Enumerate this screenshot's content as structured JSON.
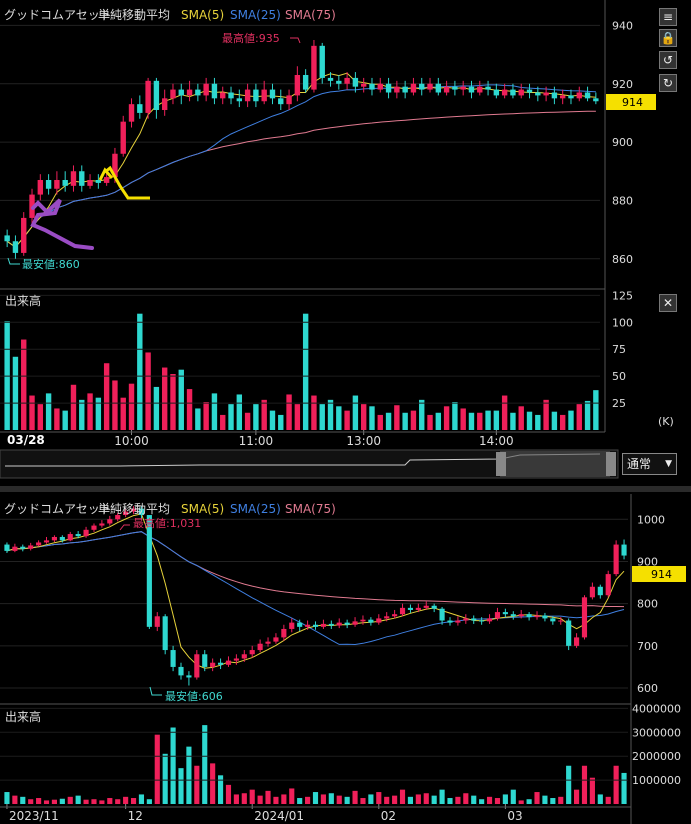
{
  "chart_data": [
    {
      "type": "candlestick",
      "title": "グッドコムアセット",
      "indicator_label": "単純移動平均",
      "ma_labels": [
        {
          "name": "SMA(5)",
          "color": "#e6d23a"
        },
        {
          "name": "SMA(25)",
          "color": "#3f7fe0"
        },
        {
          "name": "SMA(75)",
          "color": "#e07a90"
        }
      ],
      "date_label": "03/28",
      "x_ticks": [
        "10:00",
        "11:00",
        "13:00",
        "14:00"
      ],
      "y_ticks": [
        860,
        880,
        900,
        920,
        940
      ],
      "ylim": [
        851,
        947
      ],
      "current_price": "914",
      "high_label": "最高値:935",
      "low_label": "最安値:860",
      "volume_label": "出来高",
      "volume_ticks": [
        25,
        50,
        75,
        100,
        125
      ],
      "volume_unit": "(K)",
      "volume_ylim": [
        0,
        130
      ],
      "mode_label": "通常",
      "candles": [
        [
          868,
          866,
          870,
          864
        ],
        [
          866,
          862,
          868,
          860
        ],
        [
          862,
          874,
          876,
          861
        ],
        [
          874,
          882,
          884,
          872
        ],
        [
          882,
          887,
          889,
          880
        ],
        [
          887,
          884,
          889,
          882
        ],
        [
          884,
          887,
          890,
          882
        ],
        [
          887,
          885,
          890,
          883
        ],
        [
          885,
          890,
          892,
          883
        ],
        [
          890,
          885,
          892,
          883
        ],
        [
          885,
          887,
          889,
          884
        ],
        [
          887,
          886,
          889,
          884
        ],
        [
          886,
          888,
          890,
          885
        ],
        [
          888,
          896,
          898,
          886
        ],
        [
          896,
          907,
          909,
          895
        ],
        [
          907,
          913,
          915,
          905
        ],
        [
          913,
          910,
          916,
          908
        ],
        [
          910,
          921,
          922,
          908
        ],
        [
          921,
          911,
          922,
          908
        ],
        [
          911,
          915,
          918,
          909
        ],
        [
          915,
          918,
          920,
          913
        ],
        [
          918,
          916,
          920,
          913
        ],
        [
          916,
          918,
          921,
          914
        ],
        [
          918,
          916,
          920,
          914
        ],
        [
          916,
          920,
          922,
          914
        ],
        [
          920,
          915,
          922,
          913
        ],
        [
          915,
          917,
          919,
          913
        ],
        [
          917,
          915,
          919,
          913
        ],
        [
          915,
          914,
          918,
          912
        ],
        [
          914,
          918,
          920,
          912
        ],
        [
          918,
          914,
          920,
          912
        ],
        [
          914,
          918,
          921,
          913
        ],
        [
          918,
          915,
          920,
          913
        ],
        [
          915,
          913,
          918,
          911
        ],
        [
          913,
          916,
          918,
          911
        ],
        [
          916,
          923,
          926,
          914
        ],
        [
          923,
          918,
          925,
          917
        ],
        [
          918,
          933,
          935,
          917
        ],
        [
          933,
          922,
          934,
          920
        ],
        [
          922,
          921,
          924,
          919
        ],
        [
          921,
          920,
          923,
          918
        ],
        [
          920,
          922,
          924,
          918
        ],
        [
          922,
          919,
          924,
          917
        ],
        [
          919,
          920,
          922,
          917
        ],
        [
          920,
          918,
          922,
          916
        ],
        [
          918,
          920,
          922,
          917
        ],
        [
          920,
          917,
          922,
          915
        ],
        [
          917,
          919,
          921,
          915
        ],
        [
          919,
          917,
          921,
          915
        ],
        [
          917,
          920,
          922,
          916
        ],
        [
          920,
          918,
          922,
          916
        ],
        [
          918,
          920,
          922,
          917
        ],
        [
          920,
          917,
          922,
          916
        ],
        [
          917,
          919,
          921,
          916
        ],
        [
          919,
          918,
          921,
          916
        ],
        [
          918,
          919,
          921,
          916
        ],
        [
          919,
          917,
          921,
          915
        ],
        [
          917,
          919,
          921,
          916
        ],
        [
          919,
          918,
          921,
          916
        ],
        [
          918,
          916,
          920,
          915
        ],
        [
          916,
          918,
          920,
          915
        ],
        [
          918,
          916,
          920,
          915
        ],
        [
          916,
          918,
          920,
          915
        ],
        [
          918,
          917,
          920,
          915
        ],
        [
          917,
          916,
          919,
          914
        ],
        [
          916,
          917,
          919,
          914
        ],
        [
          917,
          915,
          919,
          913
        ],
        [
          915,
          916,
          918,
          913
        ],
        [
          916,
          915,
          918,
          913
        ],
        [
          915,
          917,
          919,
          914
        ],
        [
          917,
          915,
          919,
          914
        ],
        [
          915,
          914,
          917,
          913
        ]
      ],
      "volume": [
        101,
        68,
        84,
        32,
        24,
        34,
        20,
        18,
        42,
        28,
        34,
        30,
        62,
        46,
        30,
        43,
        108,
        72,
        40,
        58,
        52,
        56,
        38,
        20,
        26,
        34,
        14,
        24,
        33,
        16,
        24,
        28,
        18,
        14,
        33,
        24,
        108,
        32,
        24,
        28,
        22,
        18,
        32,
        24,
        22,
        14,
        16,
        23,
        16,
        18,
        28,
        14,
        16,
        22,
        26,
        20,
        16,
        16,
        18,
        18,
        32,
        16,
        22,
        17,
        14,
        28,
        17,
        14,
        18,
        24,
        27,
        37
      ]
    },
    {
      "type": "candlestick",
      "title": "グッドコムアセット",
      "indicator_label": "単純移動平均",
      "ma_labels": [
        {
          "name": "SMA(5)",
          "color": "#e6d23a"
        },
        {
          "name": "SMA(25)",
          "color": "#3f7fe0"
        },
        {
          "name": "SMA(75)",
          "color": "#e07a90"
        }
      ],
      "x_ticks": [
        "2023/11",
        "12",
        "2024/01",
        "02",
        "03"
      ],
      "y_ticks": [
        600,
        700,
        800,
        900,
        1000
      ],
      "ylim": [
        574,
        1048
      ],
      "current_price": "914",
      "high_label": "最高値:1,031",
      "low_label": "最安値:606",
      "volume_label": "出来高",
      "volume_ticks": [
        1000000,
        2000000,
        3000000,
        4000000
      ],
      "volume_ylim": [
        0,
        4100000
      ],
      "candles": [
        [
          940,
          925,
          945,
          920
        ],
        [
          925,
          935,
          942,
          922
        ],
        [
          935,
          930,
          940,
          924
        ],
        [
          930,
          938,
          944,
          926
        ],
        [
          938,
          945,
          950,
          935
        ],
        [
          945,
          950,
          958,
          942
        ],
        [
          950,
          958,
          962,
          946
        ],
        [
          958,
          950,
          962,
          945
        ],
        [
          950,
          965,
          970,
          948
        ],
        [
          965,
          960,
          972,
          955
        ],
        [
          960,
          975,
          982,
          956
        ],
        [
          975,
          985,
          990,
          970
        ],
        [
          985,
          990,
          998,
          980
        ],
        [
          990,
          1000,
          1008,
          985
        ],
        [
          1000,
          1010,
          1015,
          995
        ],
        [
          1010,
          1018,
          1025,
          1005
        ],
        [
          1018,
          1025,
          1031,
          1012
        ],
        [
          1025,
          1010,
          1030,
          1000
        ],
        [
          1010,
          745,
          1010,
          740
        ],
        [
          745,
          770,
          780,
          735
        ],
        [
          770,
          690,
          775,
          680
        ],
        [
          690,
          650,
          700,
          640
        ],
        [
          650,
          630,
          660,
          620
        ],
        [
          630,
          625,
          640,
          606
        ],
        [
          625,
          680,
          690,
          620
        ],
        [
          680,
          650,
          690,
          640
        ],
        [
          650,
          660,
          670,
          640
        ],
        [
          660,
          655,
          670,
          645
        ],
        [
          655,
          665,
          675,
          650
        ],
        [
          665,
          670,
          680,
          655
        ],
        [
          670,
          680,
          690,
          662
        ],
        [
          680,
          690,
          700,
          672
        ],
        [
          690,
          705,
          715,
          685
        ],
        [
          705,
          710,
          720,
          698
        ],
        [
          710,
          720,
          730,
          705
        ],
        [
          720,
          740,
          750,
          712
        ],
        [
          740,
          755,
          765,
          732
        ],
        [
          755,
          745,
          762,
          735
        ],
        [
          745,
          750,
          760,
          738
        ],
        [
          750,
          745,
          758,
          738
        ],
        [
          745,
          752,
          762,
          740
        ],
        [
          752,
          748,
          760,
          740
        ],
        [
          748,
          755,
          765,
          742
        ],
        [
          755,
          750,
          762,
          742
        ],
        [
          750,
          758,
          768,
          745
        ],
        [
          758,
          762,
          772,
          750
        ],
        [
          762,
          755,
          768,
          748
        ],
        [
          755,
          765,
          775,
          750
        ],
        [
          765,
          770,
          780,
          758
        ],
        [
          770,
          775,
          785,
          765
        ],
        [
          775,
          790,
          800,
          770
        ],
        [
          790,
          785,
          798,
          778
        ],
        [
          785,
          790,
          800,
          780
        ],
        [
          790,
          795,
          805,
          785
        ],
        [
          795,
          788,
          800,
          780
        ],
        [
          788,
          760,
          792,
          750
        ],
        [
          760,
          755,
          768,
          748
        ],
        [
          755,
          760,
          770,
          748
        ],
        [
          760,
          765,
          775,
          752
        ],
        [
          765,
          760,
          772,
          752
        ],
        [
          760,
          758,
          768,
          750
        ],
        [
          758,
          765,
          775,
          752
        ],
        [
          765,
          780,
          790,
          760
        ],
        [
          780,
          775,
          788,
          768
        ],
        [
          775,
          770,
          782,
          762
        ],
        [
          770,
          775,
          785,
          765
        ],
        [
          775,
          768,
          780,
          760
        ],
        [
          768,
          772,
          782,
          762
        ],
        [
          772,
          765,
          778,
          758
        ],
        [
          765,
          758,
          770,
          750
        ],
        [
          758,
          760,
          768,
          750
        ],
        [
          760,
          700,
          765,
          690
        ],
        [
          700,
          720,
          730,
          695
        ],
        [
          720,
          815,
          820,
          715
        ],
        [
          815,
          840,
          850,
          810
        ],
        [
          840,
          820,
          845,
          812
        ],
        [
          820,
          870,
          878,
          815
        ],
        [
          870,
          940,
          950,
          865
        ],
        [
          940,
          914,
          952,
          905
        ]
      ],
      "volume": [
        500000,
        350000,
        300000,
        200000,
        250000,
        150000,
        180000,
        220000,
        300000,
        350000,
        180000,
        200000,
        150000,
        250000,
        200000,
        300000,
        250000,
        400000,
        200000,
        2900000,
        2100000,
        3200000,
        1500000,
        2400000,
        1600000,
        3300000,
        1700000,
        1200000,
        800000,
        400000,
        450000,
        600000,
        350000,
        550000,
        300000,
        400000,
        650000,
        250000,
        300000,
        500000,
        400000,
        450000,
        350000,
        300000,
        550000,
        250000,
        400000,
        500000,
        300000,
        350000,
        600000,
        300000,
        400000,
        450000,
        350000,
        600000,
        250000,
        300000,
        450000,
        350000,
        200000,
        300000,
        250000,
        400000,
        600000,
        150000,
        200000,
        500000,
        350000,
        250000,
        300000,
        1600000,
        600000,
        1600000,
        1100000,
        400000,
        300000,
        1600000,
        1300000
      ]
    }
  ]
}
